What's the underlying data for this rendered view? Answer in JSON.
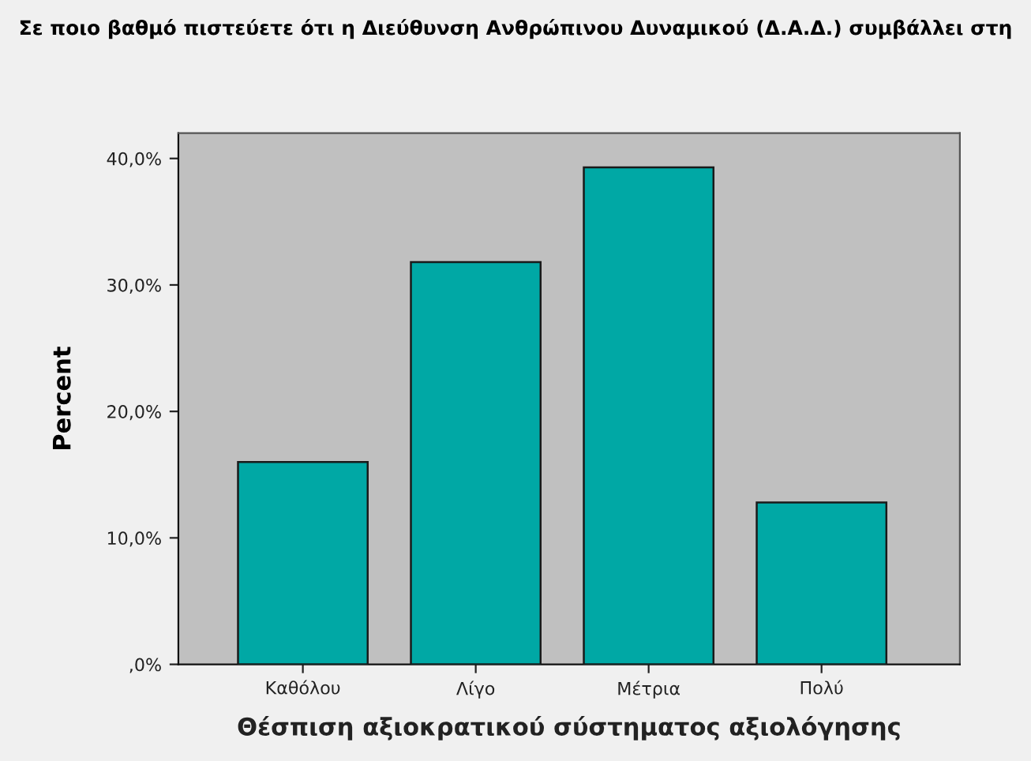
{
  "chart_data": {
    "type": "bar",
    "title": "Σε ποιο βαθμό πιστεύετε ότι η Διεύθυνση Ανθρώπινου Δυναμικού (Δ.Α.Δ.) συμβάλλει στη",
    "xlabel": "Θέσπιση αξιοκρατικού σύστηματος αξιολόγησης",
    "ylabel": "Percent",
    "categories": [
      "Καθόλου",
      "Λίγο",
      "Μέτρια",
      "Πολύ"
    ],
    "values": [
      16.0,
      31.8,
      39.3,
      12.8
    ],
    "color": "#00a8a5",
    "ylim": [
      0,
      42
    ],
    "yticks": [
      {
        "value": 0,
        "label": ",0%"
      },
      {
        "value": 10,
        "label": "10,0%"
      },
      {
        "value": 20,
        "label": "20,0%"
      },
      {
        "value": 30,
        "label": "30,0%"
      },
      {
        "value": 40,
        "label": "40,0%"
      }
    ],
    "grid": false,
    "legend": false
  }
}
